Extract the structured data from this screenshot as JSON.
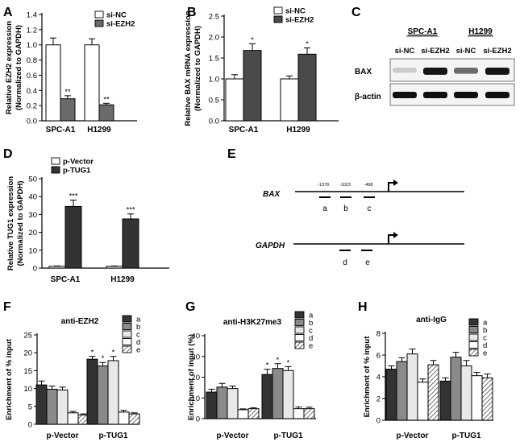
{
  "figure": {
    "panel_letters": [
      "A",
      "B",
      "C",
      "D",
      "E",
      "F",
      "G",
      "H"
    ],
    "blot": {
      "groups": [
        "SPC-A1",
        "H1299"
      ],
      "lanes": [
        "si-NC",
        "si-EZH2",
        "si-NC",
        "si-EZH2"
      ],
      "rows": [
        "BAX",
        "β-actin"
      ],
      "bax_intensity": [
        0.12,
        0.95,
        0.55,
        0.95
      ],
      "actin_intensity": [
        1.0,
        1.0,
        1.0,
        1.0
      ]
    },
    "diagram": {
      "gene1": "BAX",
      "gene2": "GAPDH",
      "positions": [
        "-1378",
        "-1023",
        "-498"
      ],
      "bax_regions": [
        "a",
        "b",
        "c"
      ],
      "gapdh_regions": [
        "d",
        "e"
      ]
    }
  },
  "chart_data": [
    {
      "panel": "A",
      "type": "bar",
      "title": "",
      "ylabel": [
        "Relative EZH2 expression",
        "(Normalized to GAPDH)"
      ],
      "xlabel": "",
      "categories": [
        "SPC-A1",
        "H1299"
      ],
      "ylim": [
        0,
        1.4
      ],
      "yticks": [
        0.0,
        0.2,
        0.4,
        0.6,
        0.8,
        1.0,
        1.2,
        1.4
      ],
      "legend_position": "top-right",
      "series": [
        {
          "name": "si-NC",
          "fill": "#ffffff",
          "values": [
            1.0,
            1.0
          ],
          "errors": [
            0.09,
            0.08
          ],
          "annotations": [
            "",
            ""
          ]
        },
        {
          "name": "si-EZH2",
          "fill": "#6b6b6b",
          "values": [
            0.29,
            0.21
          ],
          "errors": [
            0.04,
            0.02
          ],
          "annotations": [
            "**",
            "**"
          ]
        }
      ]
    },
    {
      "panel": "B",
      "type": "bar",
      "title": "",
      "ylabel": [
        "Relative BAX mRNA expression",
        "(Normalized to GAPDH)"
      ],
      "xlabel": "",
      "categories": [
        "SPC-A1",
        "H1299"
      ],
      "ylim": [
        0,
        2.5
      ],
      "yticks": [
        0.0,
        0.5,
        1.0,
        1.5,
        2.0,
        2.5
      ],
      "legend_position": "top-left",
      "series": [
        {
          "name": "si-NC",
          "fill": "#ffffff",
          "values": [
            1.0,
            1.0
          ],
          "errors": [
            0.1,
            0.07
          ],
          "annotations": [
            "",
            ""
          ]
        },
        {
          "name": "si-EZH2",
          "fill": "#4a4a4a",
          "values": [
            1.68,
            1.59
          ],
          "errors": [
            0.16,
            0.15
          ],
          "annotations": [
            "*",
            "*"
          ]
        }
      ]
    },
    {
      "panel": "D",
      "type": "bar",
      "title": "",
      "ylabel": [
        "Relative TUG1 expression",
        "(Normalized to GAPDH)"
      ],
      "xlabel": "",
      "categories": [
        "SPC-A1",
        "H1299"
      ],
      "ylim": [
        0,
        50
      ],
      "yticks": [
        0,
        10,
        20,
        30,
        40,
        50
      ],
      "legend_position": "top-left",
      "series": [
        {
          "name": "p-Vector",
          "fill": "#ffffff",
          "values": [
            1.0,
            1.0
          ],
          "errors": [
            0.2,
            0.2
          ],
          "annotations": [
            "",
            ""
          ]
        },
        {
          "name": "p-TUG1",
          "fill": "#333333",
          "values": [
            34.5,
            27.5
          ],
          "errors": [
            3.5,
            2.8
          ],
          "annotations": [
            "***",
            "***"
          ]
        }
      ]
    },
    {
      "panel": "F",
      "type": "bar",
      "title": "anti-EZH2",
      "ylabel": [
        "Enrichment of % input"
      ],
      "xlabel": "",
      "categories": [
        "p-Vector",
        "p-TUG1"
      ],
      "ylim": [
        0,
        25
      ],
      "yticks": [
        0,
        5,
        10,
        15,
        20,
        25
      ],
      "legend_position": "top-right",
      "series": [
        {
          "name": "a",
          "fill": "#333333",
          "values": [
            11.0,
            18.2
          ],
          "errors": [
            1.1,
            0.8
          ],
          "annotations": [
            "",
            "*"
          ]
        },
        {
          "name": "b",
          "fill": "#8a8a8a",
          "values": [
            9.8,
            16.3
          ],
          "errors": [
            0.9,
            1.0
          ],
          "annotations": [
            "",
            "*"
          ]
        },
        {
          "name": "c",
          "fill": "#e8e8e8",
          "values": [
            9.6,
            17.8
          ],
          "errors": [
            0.8,
            1.2
          ],
          "annotations": [
            "",
            "*"
          ]
        },
        {
          "name": "d",
          "fill": "#ffffff",
          "values": [
            3.2,
            3.4
          ],
          "errors": [
            0.4,
            0.5
          ],
          "annotations": [
            "",
            ""
          ]
        },
        {
          "name": "e",
          "fill": "hatch",
          "values": [
            2.6,
            2.9
          ],
          "errors": [
            0.3,
            0.3
          ],
          "annotations": [
            "",
            ""
          ]
        }
      ]
    },
    {
      "panel": "G",
      "type": "bar",
      "title": "anti-H3K27me3",
      "ylabel": [
        "Enrichment of input (%)"
      ],
      "xlabel": "",
      "categories": [
        "p-Vector",
        "p-TUG1"
      ],
      "ylim": [
        0,
        40
      ],
      "yticks": [
        0,
        10,
        20,
        30,
        40
      ],
      "legend_position": "top-right",
      "series": [
        {
          "name": "a",
          "fill": "#333333",
          "values": [
            12.8,
            21.3
          ],
          "errors": [
            1.4,
            2.5
          ],
          "annotations": [
            "",
            "*"
          ]
        },
        {
          "name": "b",
          "fill": "#8a8a8a",
          "values": [
            15.2,
            24.2
          ],
          "errors": [
            1.8,
            2.3
          ],
          "annotations": [
            "",
            "*"
          ]
        },
        {
          "name": "c",
          "fill": "#e8e8e8",
          "values": [
            14.5,
            23.2
          ],
          "errors": [
            1.2,
            1.9
          ],
          "annotations": [
            "",
            "*"
          ]
        },
        {
          "name": "d",
          "fill": "#ffffff",
          "values": [
            4.3,
            4.8
          ],
          "errors": [
            0.4,
            0.8
          ],
          "annotations": [
            "",
            ""
          ]
        },
        {
          "name": "e",
          "fill": "hatch",
          "values": [
            4.8,
            4.8
          ],
          "errors": [
            0.4,
            0.7
          ],
          "annotations": [
            "",
            ""
          ]
        }
      ]
    },
    {
      "panel": "H",
      "type": "bar",
      "title": "anti-IgG",
      "ylabel": [
        "Enrichment of % input"
      ],
      "xlabel": "",
      "categories": [
        "p-Vector",
        "p-TUG1"
      ],
      "ylim": [
        0,
        8
      ],
      "yticks": [
        0,
        2,
        4,
        6,
        8
      ],
      "legend_position": "top-right",
      "series": [
        {
          "name": "a",
          "fill": "#333333",
          "values": [
            4.7,
            3.6
          ],
          "errors": [
            0.3,
            0.3
          ],
          "annotations": [
            "",
            ""
          ]
        },
        {
          "name": "b",
          "fill": "#8a8a8a",
          "values": [
            5.4,
            5.8
          ],
          "errors": [
            0.35,
            0.45
          ],
          "annotations": [
            "",
            ""
          ]
        },
        {
          "name": "c",
          "fill": "#e8e8e8",
          "values": [
            6.1,
            5.0
          ],
          "errors": [
            0.45,
            0.5
          ],
          "annotations": [
            "",
            ""
          ]
        },
        {
          "name": "d",
          "fill": "#ffffff",
          "values": [
            3.5,
            4.1
          ],
          "errors": [
            0.3,
            0.3
          ],
          "annotations": [
            "",
            ""
          ]
        },
        {
          "name": "e",
          "fill": "hatch",
          "values": [
            5.1,
            3.9
          ],
          "errors": [
            0.4,
            0.35
          ],
          "annotations": [
            "",
            ""
          ]
        }
      ]
    }
  ]
}
